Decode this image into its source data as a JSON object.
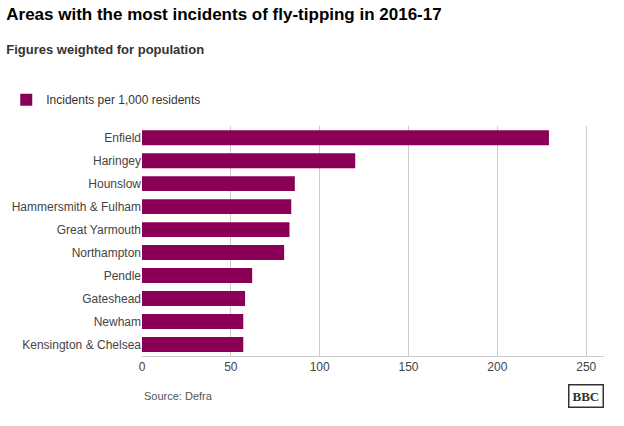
{
  "chart_data": {
    "type": "bar",
    "orientation": "horizontal",
    "title": "Areas with the most incidents of fly-tipping in 2016-17",
    "subtitle": "Figures weighted for population",
    "categories": [
      "Kensington & Chelsea",
      "Newham",
      "Gateshead",
      "Pendle",
      "Northampton",
      "Great Yarmouth",
      "Hammersmith & Fulham",
      "Hounslow",
      "Haringey",
      "Enfield"
    ],
    "series": [
      {
        "name": "Incidents per 1,000 residents",
        "color": "#8b0057",
        "values": [
          57,
          57,
          58,
          62,
          80,
          83,
          84,
          86,
          120,
          229
        ]
      }
    ],
    "xlim": [
      0,
      260
    ],
    "xticks": [
      0,
      50,
      100,
      150,
      200,
      250
    ],
    "grid": true,
    "legend": "upper left",
    "annotations": [
      "Source: Defra",
      "BBC"
    ]
  }
}
